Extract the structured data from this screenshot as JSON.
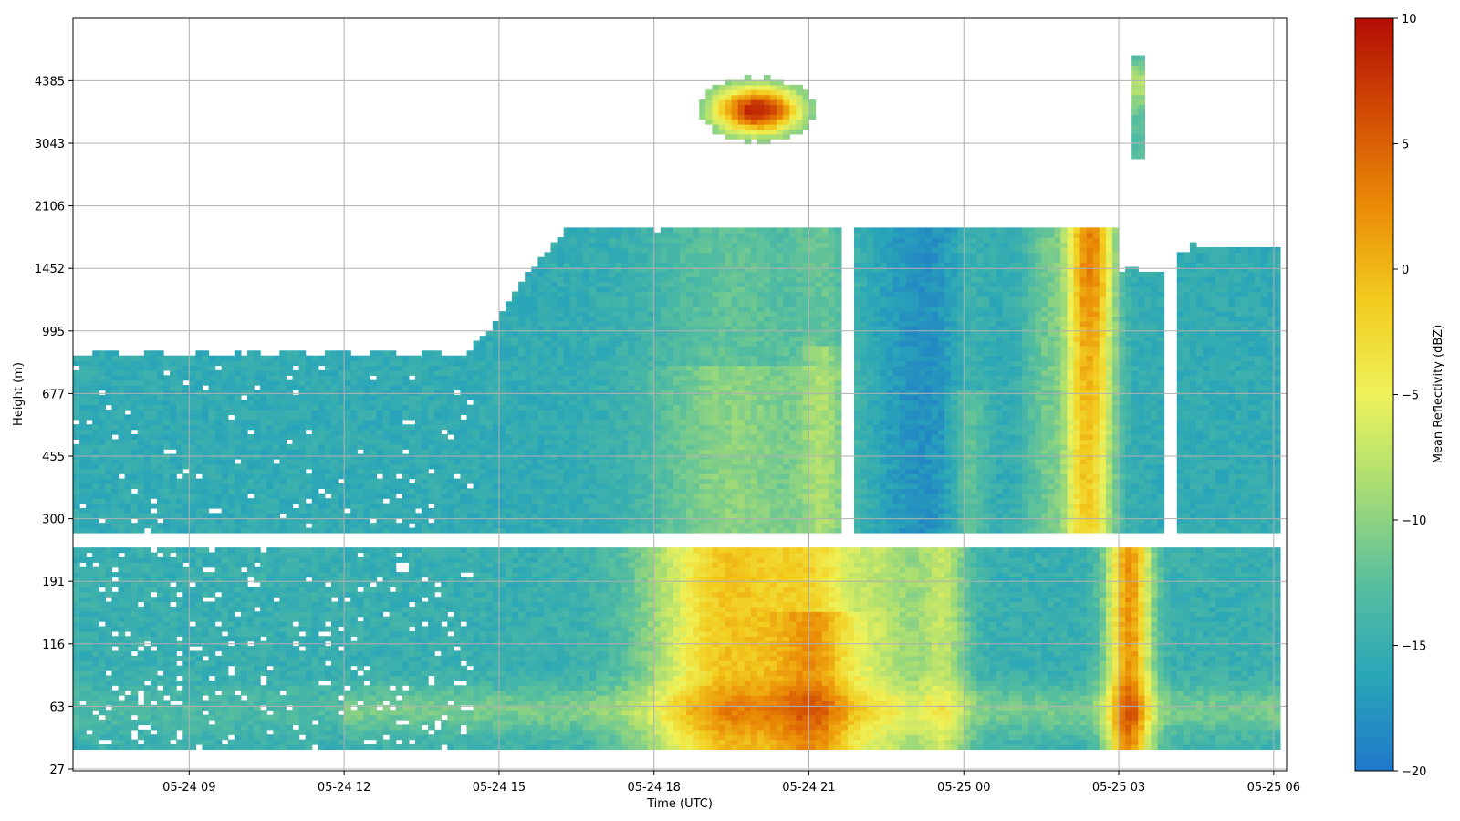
{
  "chart_data": {
    "type": "heatmap",
    "xlabel": "Time (UTC)",
    "ylabel": "Height (m)",
    "colorbar": {
      "label": "Mean Reflectivity (dBZ)",
      "range": [
        -20,
        10
      ],
      "ticks": [
        "10",
        "5",
        "0",
        "−5",
        "−10",
        "−15",
        "−20"
      ],
      "tick_values": [
        10,
        5,
        0,
        -5,
        -10,
        -15,
        -20
      ],
      "colormap_stops": [
        "#1f77c9",
        "#2aa6b8",
        "#58bf9e",
        "#a7dd74",
        "#eef25a",
        "#f2cc1f",
        "#ea8b06",
        "#d24b05",
        "#b30d04"
      ]
    },
    "x_range": [
      "05-24 06:45",
      "05-25 06:15"
    ],
    "x_ticks": [
      "05-24 09",
      "05-24 12",
      "05-24 15",
      "05-24 18",
      "05-24 21",
      "05-25 00",
      "05-25 03",
      "05-25 06"
    ],
    "x_tick_hours": [
      9,
      12,
      15,
      18,
      21,
      24,
      27,
      30
    ],
    "y_scale": "log-like (uniform tick spacing)",
    "y_ticks": [
      "27",
      "63",
      "116",
      "191",
      "300",
      "455",
      "677",
      "995",
      "1452",
      "2106",
      "3043",
      "4385"
    ],
    "y_tick_values": [
      27,
      63,
      116,
      191,
      300,
      455,
      677,
      995,
      1452,
      2106,
      3043,
      4385
    ],
    "grid": true,
    "data_gaps": {
      "height_gap_m": [
        245,
        270
      ],
      "time_gaps_hours": [
        [
          21.65,
          21.85
        ],
        [
          27.9,
          28.15
        ]
      ]
    },
    "features": [
      {
        "name": "elevated-cloud",
        "time_hours": [
          18.3,
          21.4
        ],
        "height_m": [
          2700,
          5000
        ],
        "peak_dbz": 9
      },
      {
        "name": "boundary-layer-cloud",
        "time_hours": [
          15.0,
          30.1
        ],
        "height_m": [
          300,
          2000
        ],
        "typical_dbz": -13
      },
      {
        "name": "precip-shaft",
        "time_hours": [
          26.0,
          27.0
        ],
        "height_m": [
          35,
          1900
        ],
        "peak_dbz": 4
      },
      {
        "name": "near-surface-enhancement",
        "time_hours": [
          17.5,
          21.7
        ],
        "height_m": [
          35,
          245
        ],
        "peak_dbz": 4
      },
      {
        "name": "near-surface-enhancement-late",
        "time_hours": [
          26.8,
          27.6
        ],
        "height_m": [
          35,
          245
        ],
        "peak_dbz": 6
      }
    ]
  }
}
